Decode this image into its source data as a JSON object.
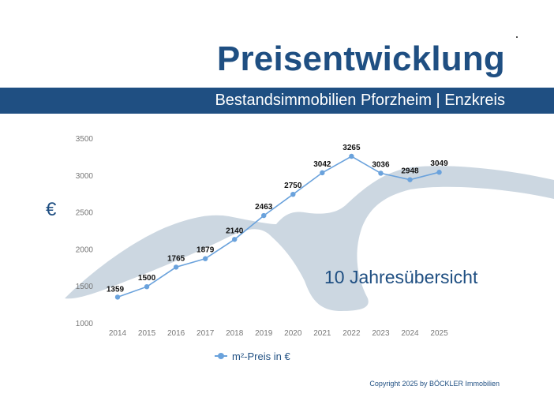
{
  "header": {
    "title": "Preisentwicklung",
    "subtitle": "Bestandsimmobilien Pforzheim | Enzkreis"
  },
  "currency_symbol": "€",
  "overlay_text": "10 Jahresübersicht",
  "copyright": "Copyright 2025 by BÖCKLER Immobilien",
  "colors": {
    "brand_blue": "#1f4f82",
    "series": "#6aa2dc",
    "bird_shape": "#ccd7e1"
  },
  "chart_data": {
    "type": "line",
    "title": "",
    "xlabel": "",
    "ylabel": "",
    "categories": [
      "2014",
      "2015",
      "2016",
      "2017",
      "2018",
      "2019",
      "2020",
      "2021",
      "2022",
      "2023",
      "2024",
      "2025"
    ],
    "series": [
      {
        "name": "m²-Preis in €",
        "values": [
          1359,
          1500,
          1765,
          1879,
          2140,
          2463,
          2750,
          3042,
          3265,
          3036,
          2948,
          3049
        ]
      }
    ],
    "y_ticks": [
      "1000",
      "1500",
      "2000",
      "2500",
      "3000",
      "3500"
    ],
    "ylim": [
      1000,
      3500
    ],
    "grid": false,
    "legend": "bottom-center",
    "data_labels": true
  }
}
